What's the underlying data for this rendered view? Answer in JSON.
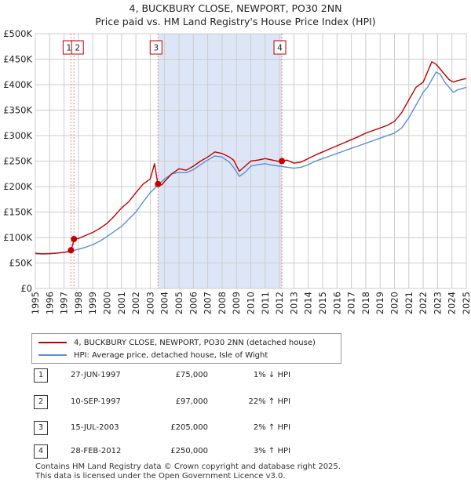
{
  "title_line1": "4, BUCKBURY CLOSE, NEWPORT, PO30 2NN",
  "title_line2": "Price paid vs. HM Land Registry's House Price Index (HPI)",
  "colors": {
    "property": "#c00000",
    "hpi": "#5b8fd0",
    "shade": "#dde6f7",
    "grid": "#cccccc",
    "vline": "#e08888"
  },
  "legend": {
    "property_label": "4, BUCKBURY CLOSE, NEWPORT, PO30 2NN (detached house)",
    "hpi_label": "HPI: Average price, detached house, Isle of Wight"
  },
  "transactions": [
    {
      "num": "1",
      "date": "27-JUN-1997",
      "price": "£75,000",
      "hpi": "1% ↓ HPI"
    },
    {
      "num": "2",
      "date": "10-SEP-1997",
      "price": "£97,000",
      "hpi": "22% ↑ HPI"
    },
    {
      "num": "3",
      "date": "15-JUL-2003",
      "price": "£205,000",
      "hpi": "2% ↑ HPI"
    },
    {
      "num": "4",
      "date": "28-FEB-2012",
      "price": "£250,000",
      "hpi": "3% ↑ HPI"
    }
  ],
  "footer": {
    "line1": "Contains HM Land Registry data © Crown copyright and database right 2025.",
    "line2": "This data is licensed under the Open Government Licence v3.0."
  },
  "chart_data": {
    "type": "line",
    "title": "4, BUCKBURY CLOSE, NEWPORT, PO30 2NN",
    "subtitle": "Price paid vs. HM Land Registry's House Price Index (HPI)",
    "xlabel": "",
    "ylabel": "",
    "xlim": [
      1995,
      2025
    ],
    "ylim": [
      0,
      500000
    ],
    "grid": true,
    "y_ticks": [
      0,
      50000,
      100000,
      150000,
      200000,
      250000,
      300000,
      350000,
      400000,
      450000,
      500000
    ],
    "y_tick_labels": [
      "£0",
      "£50K",
      "£100K",
      "£150K",
      "£200K",
      "£250K",
      "£300K",
      "£350K",
      "£400K",
      "£450K",
      "£500K"
    ],
    "x_ticks": [
      1995,
      1996,
      1997,
      1998,
      1999,
      2000,
      2001,
      2002,
      2003,
      2004,
      2005,
      2006,
      2007,
      2008,
      2009,
      2010,
      2011,
      2012,
      2013,
      2014,
      2015,
      2016,
      2017,
      2018,
      2019,
      2020,
      2021,
      2022,
      2023,
      2024,
      2025
    ],
    "x_tick_labels": [
      "1995",
      "1996",
      "1997",
      "1998",
      "1999",
      "2000",
      "2001",
      "2002",
      "2003",
      "2004",
      "2005",
      "2006",
      "2007",
      "2008",
      "2009",
      "2010",
      "2011",
      "2012",
      "2013",
      "2014",
      "2015",
      "2016",
      "2017",
      "2018",
      "2019",
      "2020",
      "2021",
      "2022",
      "2023",
      "2024",
      "2025"
    ],
    "shaded_region": [
      2003.54,
      2012.16
    ],
    "series": [
      {
        "name": "4, BUCKBURY CLOSE, NEWPORT, PO30 2NN (detached house)",
        "x": [
          1995,
          1995.5,
          1996,
          1996.5,
          1997.0,
          1997.48,
          1997.49,
          1997.69,
          1997.7,
          1998,
          1998.5,
          1999,
          1999.5,
          2000,
          2000.5,
          2001,
          2001.5,
          2002,
          2002.5,
          2003,
          2003.3,
          2003.5,
          2003.55,
          2003.8,
          2004,
          2004.5,
          2005,
          2005.5,
          2006,
          2006.5,
          2007,
          2007.5,
          2008,
          2008.5,
          2008.8,
          2009.2,
          2009.6,
          2010,
          2010.5,
          2011,
          2011.5,
          2012.0,
          2012.16,
          2012.5,
          2013,
          2013.5,
          2014,
          2014.5,
          2015,
          2015.5,
          2016,
          2016.5,
          2017,
          2017.5,
          2018,
          2018.5,
          2019,
          2019.5,
          2020,
          2020.5,
          2021,
          2021.5,
          2022,
          2022.3,
          2022.6,
          2022.9,
          2023.2,
          2023.5,
          2023.8,
          2024.1,
          2024.4,
          2024.7,
          2025
        ],
        "values": [
          69000,
          68000,
          68500,
          69500,
          71000,
          73000,
          75000,
          95000,
          97000,
          98000,
          104000,
          110000,
          118000,
          128000,
          142000,
          158000,
          170000,
          188000,
          205000,
          215000,
          245000,
          210000,
          205000,
          203000,
          210000,
          225000,
          235000,
          232000,
          240000,
          250000,
          258000,
          268000,
          265000,
          258000,
          252000,
          230000,
          240000,
          250000,
          252000,
          255000,
          252000,
          249000,
          250000,
          252000,
          246000,
          248000,
          255000,
          262000,
          268000,
          274000,
          280000,
          286000,
          292000,
          298000,
          305000,
          310000,
          315000,
          320000,
          328000,
          345000,
          370000,
          395000,
          405000,
          425000,
          445000,
          440000,
          430000,
          420000,
          410000,
          405000,
          408000,
          410000,
          412000
        ]
      },
      {
        "name": "HPI: Average price, detached house, Isle of Wight",
        "x": [
          1995,
          1995.5,
          1996,
          1996.5,
          1997,
          1997.5,
          1998,
          1998.5,
          1999,
          1999.5,
          2000,
          2000.5,
          2001,
          2001.5,
          2002,
          2002.5,
          2003,
          2003.5,
          2004,
          2004.5,
          2005,
          2005.5,
          2006,
          2006.5,
          2007,
          2007.5,
          2008,
          2008.5,
          2008.8,
          2009.2,
          2009.6,
          2010,
          2010.5,
          2011,
          2011.5,
          2012,
          2012.5,
          2013,
          2013.5,
          2014,
          2014.5,
          2015,
          2015.5,
          2016,
          2016.5,
          2017,
          2017.5,
          2018,
          2018.5,
          2019,
          2019.5,
          2020,
          2020.5,
          2021,
          2021.5,
          2022,
          2022.3,
          2022.6,
          2022.9,
          2023.2,
          2023.5,
          2023.8,
          2024.1,
          2024.4,
          2024.7,
          2025
        ],
        "values": [
          68000,
          67500,
          68000,
          69000,
          71000,
          73500,
          77000,
          81000,
          86000,
          93000,
          102000,
          112000,
          122000,
          136000,
          150000,
          170000,
          188000,
          202000,
          215000,
          225000,
          228000,
          227000,
          233000,
          243000,
          252000,
          260000,
          258000,
          248000,
          238000,
          220000,
          228000,
          240000,
          243000,
          245000,
          242000,
          240000,
          238000,
          236000,
          238000,
          243000,
          250000,
          255000,
          260000,
          265000,
          270000,
          275000,
          280000,
          285000,
          290000,
          295000,
          300000,
          305000,
          315000,
          335000,
          360000,
          385000,
          395000,
          410000,
          425000,
          420000,
          405000,
          395000,
          385000,
          390000,
          392000,
          395000
        ]
      }
    ],
    "sales": [
      {
        "label": "1",
        "x": 1997.48,
        "y": 75000
      },
      {
        "label": "2",
        "x": 1997.69,
        "y": 97000
      },
      {
        "label": "3",
        "x": 2003.54,
        "y": 205000
      },
      {
        "label": "4",
        "x": 2012.16,
        "y": 250000
      }
    ]
  }
}
